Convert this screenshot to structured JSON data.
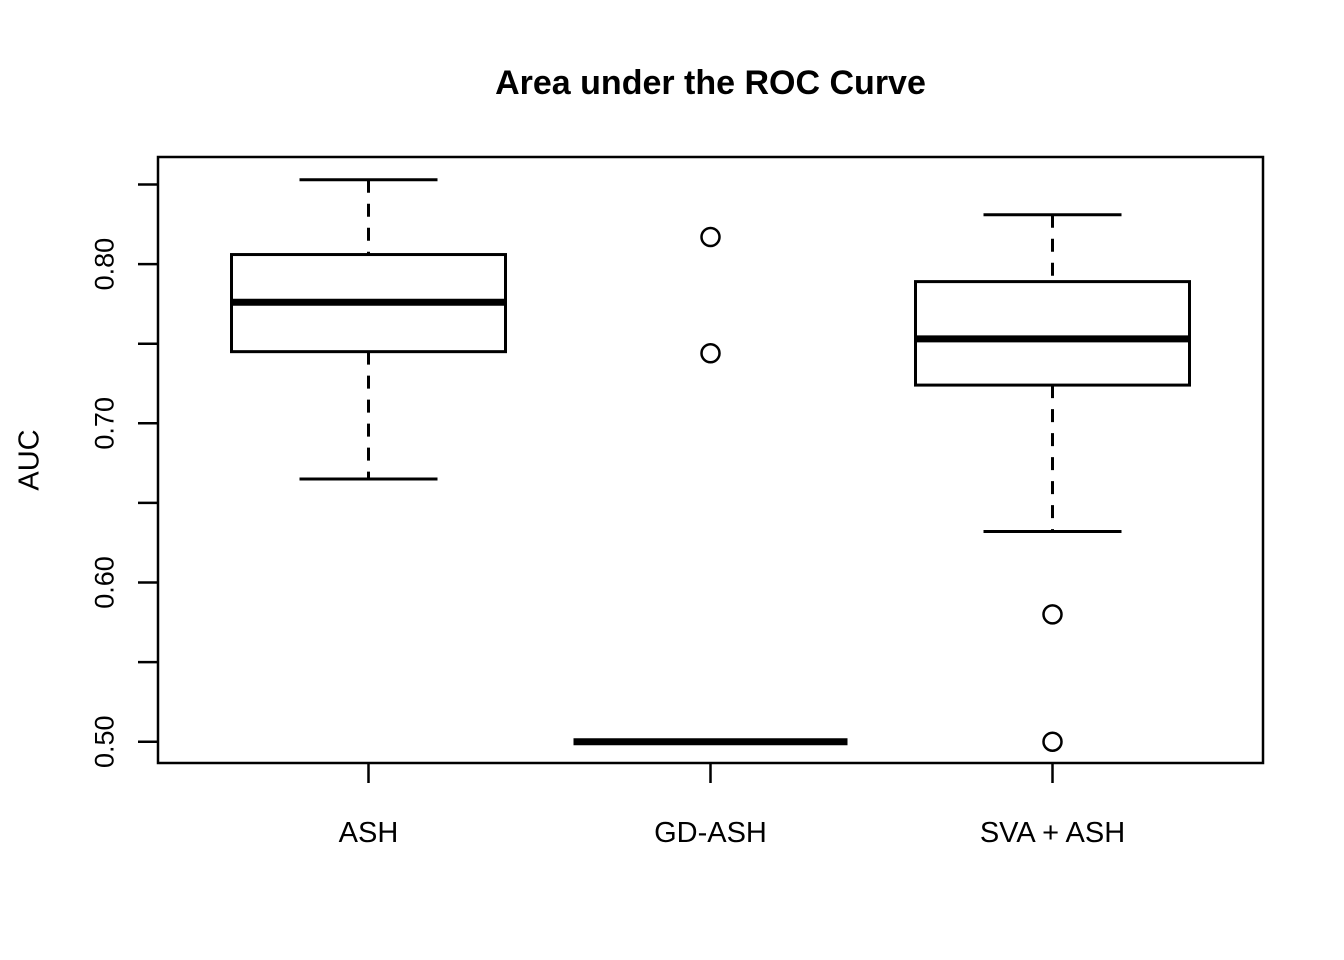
{
  "title": "Area under the ROC Curve",
  "chart_data": {
    "type": "boxplot",
    "title": "Area under the ROC Curve",
    "xlabel": "",
    "ylabel": "AUC",
    "categories": [
      "ASH",
      "GD-ASH",
      "SVA + ASH"
    ],
    "ylim": [
      0.487,
      0.867
    ],
    "grid": false,
    "legend": "none",
    "colors": {
      "stroke": "#000000",
      "background": "#ffffff"
    },
    "yticks": [
      {
        "v": 0.5,
        "label": "0.50"
      },
      {
        "v": 0.55,
        "label": ""
      },
      {
        "v": 0.6,
        "label": "0.60"
      },
      {
        "v": 0.65,
        "label": ""
      },
      {
        "v": 0.7,
        "label": "0.70"
      },
      {
        "v": 0.75,
        "label": ""
      },
      {
        "v": 0.8,
        "label": "0.80"
      },
      {
        "v": 0.85,
        "label": ""
      }
    ],
    "series": [
      {
        "name": "ASH",
        "whisker_low": 0.665,
        "q1": 0.745,
        "median": 0.776,
        "q3": 0.806,
        "whisker_high": 0.853,
        "outliers": []
      },
      {
        "name": "GD-ASH",
        "whisker_low": 0.5,
        "q1": 0.5,
        "median": 0.5,
        "q3": 0.5,
        "whisker_high": 0.5,
        "outliers": [
          0.744,
          0.817
        ]
      },
      {
        "name": "SVA + ASH",
        "whisker_low": 0.632,
        "q1": 0.724,
        "median": 0.753,
        "q3": 0.789,
        "whisker_high": 0.831,
        "outliers": [
          0.58,
          0.5
        ]
      }
    ]
  }
}
